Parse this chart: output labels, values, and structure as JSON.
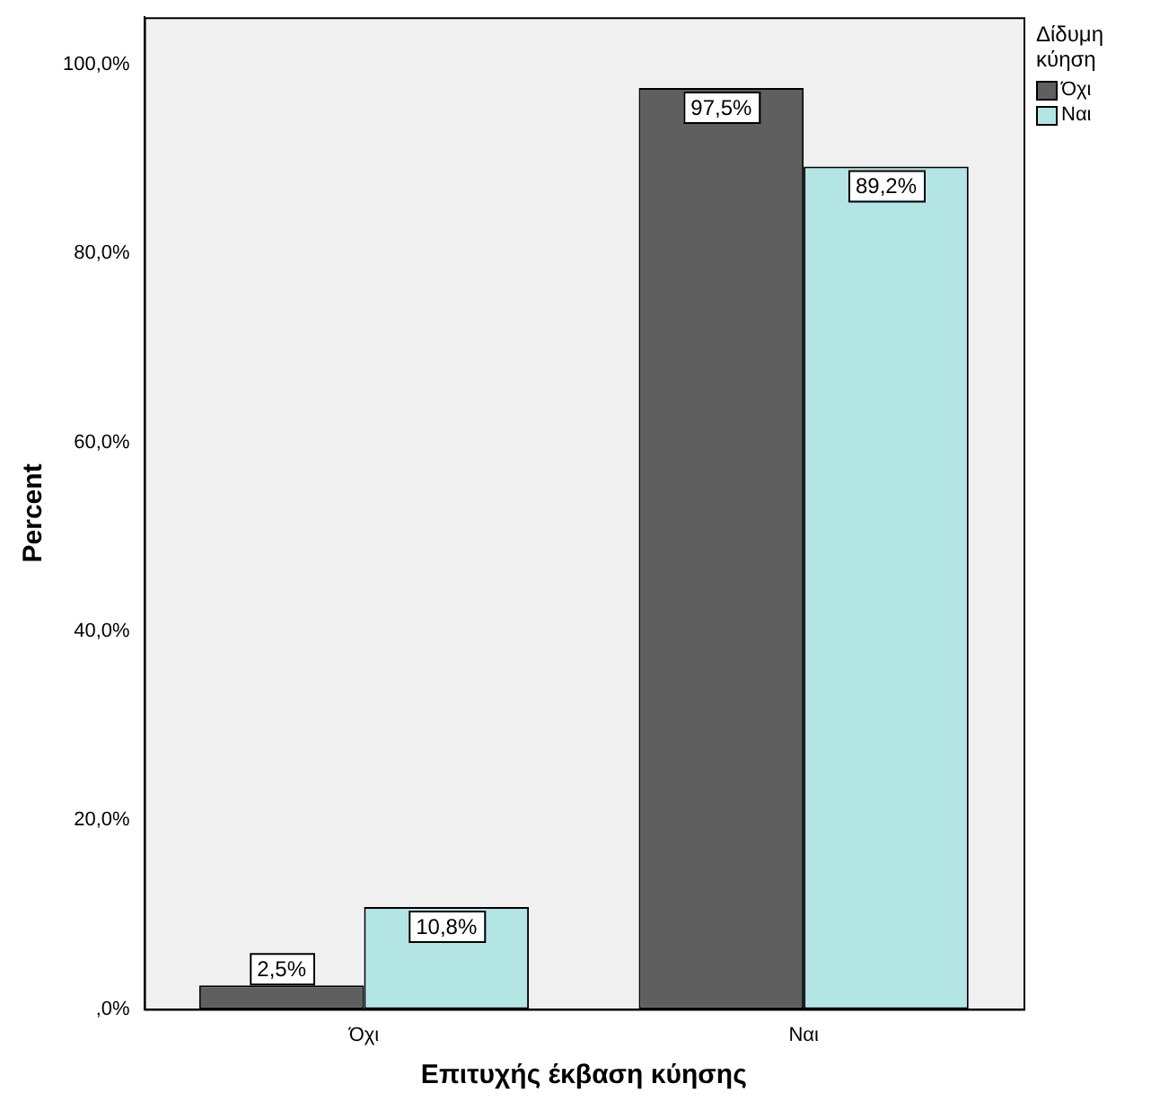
{
  "chart_data": {
    "type": "bar",
    "xlabel": "Επιτυχής έκβαση κύησης",
    "ylabel": "Percent",
    "legend_title": "Δίδυμη κύηση",
    "legend": "top right",
    "categories": [
      "Όχι",
      "Ναι"
    ],
    "series": [
      {
        "name": "Όχι",
        "color": "#5f5f5f",
        "values": [
          2.5,
          97.5
        ],
        "value_labels": [
          "2,5%",
          "97,5%"
        ]
      },
      {
        "name": "Ναι",
        "color": "#b3e5e5",
        "values": [
          10.8,
          89.2
        ],
        "value_labels": [
          "10,8%",
          "89,2%"
        ]
      }
    ],
    "ylim": [
      0,
      105
    ],
    "yticks": [
      {
        "value": 0,
        "label": ",0%"
      },
      {
        "value": 20,
        "label": "20,0%"
      },
      {
        "value": 40,
        "label": "40,0%"
      },
      {
        "value": 60,
        "label": "60,0%"
      },
      {
        "value": 80,
        "label": "80,0%"
      },
      {
        "value": 100,
        "label": "100,0%"
      }
    ],
    "grid": false
  }
}
